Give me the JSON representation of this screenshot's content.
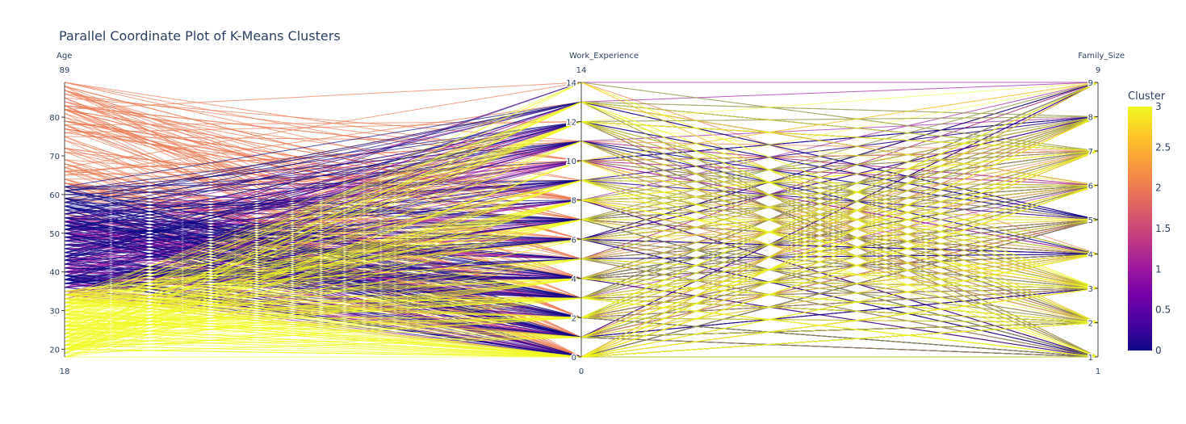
{
  "chart_data": {
    "type": "parallel_coordinates",
    "title": "Parallel Coordinate Plot of K-Means Clusters",
    "dimensions": [
      {
        "name": "Age",
        "range": [
          18,
          89
        ],
        "range_labels": [
          "89",
          "18"
        ],
        "ticks": [
          20,
          30,
          40,
          50,
          60,
          70,
          80
        ],
        "tick_labels": [
          "20",
          "30",
          "40",
          "50",
          "60",
          "70",
          "80"
        ]
      },
      {
        "name": "Work_Experience",
        "range": [
          0,
          14
        ],
        "range_labels": [
          "14",
          "0"
        ],
        "ticks": [
          0,
          2,
          4,
          6,
          8,
          10,
          12,
          14
        ],
        "tick_labels": [
          "0",
          "2",
          "4",
          "6",
          "8",
          "10",
          "12",
          "14"
        ]
      },
      {
        "name": "Family_Size",
        "range": [
          1,
          9
        ],
        "range_labels": [
          "9",
          "1"
        ],
        "ticks": [
          1,
          2,
          3,
          4,
          5,
          6,
          7,
          8,
          9
        ],
        "tick_labels": [
          "1",
          "2",
          "3",
          "4",
          "5",
          "6",
          "7",
          "8",
          "9"
        ]
      }
    ],
    "colorbar": {
      "title": "Cluster",
      "range": [
        0,
        3
      ],
      "ticks": [
        0,
        0.5,
        1,
        1.5,
        2,
        2.5,
        3
      ],
      "tick_labels": [
        "0",
        "0.5",
        "1",
        "1.5",
        "2",
        "2.5",
        "3"
      ],
      "colorscale": [
        "#0d0887",
        "#46039f",
        "#7201a8",
        "#9c179e",
        "#bd3786",
        "#d8576b",
        "#ed7953",
        "#fb9f3a",
        "#fdca26",
        "#f0f921"
      ]
    },
    "clusters": [
      {
        "cluster": 0,
        "age_range": [
          36,
          63
        ],
        "work_experience_range": [
          0,
          14
        ],
        "family_size_range": [
          1,
          9
        ]
      },
      {
        "cluster": 1,
        "age_range": [
          33,
          55
        ],
        "work_experience_range": [
          0,
          14
        ],
        "family_size_range": [
          1,
          9
        ]
      },
      {
        "cluster": 2,
        "age_range": [
          55,
          89
        ],
        "work_experience_range": [
          0,
          14
        ],
        "family_size_range": [
          1,
          9
        ]
      },
      {
        "cluster": 3,
        "age_range": [
          18,
          35
        ],
        "work_experience_range": [
          0,
          14
        ],
        "family_size_range": [
          1,
          9
        ]
      }
    ]
  }
}
